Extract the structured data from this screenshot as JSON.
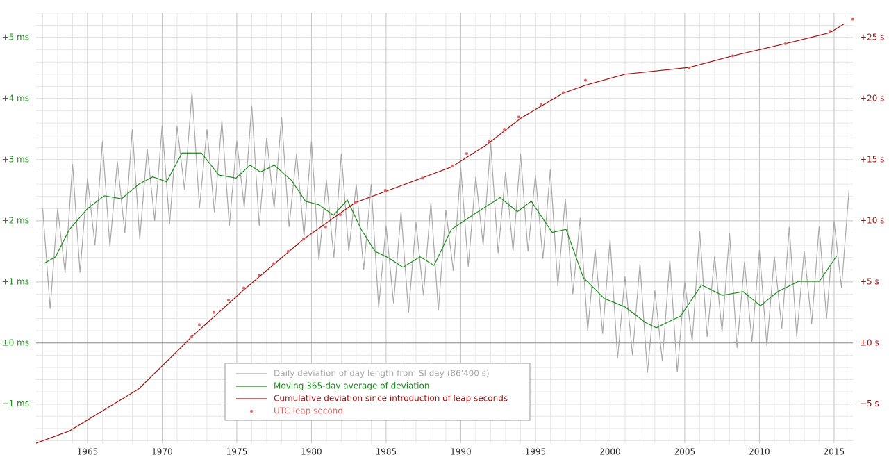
{
  "chart_data": {
    "type": "line",
    "xlim": [
      1961.56,
      2016.26
    ],
    "xticks": [
      1965,
      1970,
      1975,
      1980,
      1985,
      1990,
      1995,
      2000,
      2005,
      2010,
      2015
    ],
    "xminorticks": [
      1962,
      1963,
      1964,
      1966,
      1967,
      1968,
      1969,
      1971,
      1972,
      1973,
      1974,
      1976,
      1977,
      1978,
      1979,
      1981,
      1982,
      1983,
      1984,
      1986,
      1987,
      1988,
      1989,
      1991,
      1992,
      1993,
      1994,
      1996,
      1997,
      1998,
      1999,
      2001,
      2002,
      2003,
      2004,
      2006,
      2007,
      2008,
      2009,
      2011,
      2012,
      2013,
      2014,
      2016
    ],
    "ylim": [
      -1.64,
      5.41
    ],
    "yticks": [
      {
        "value": -1,
        "label": "−1 ms"
      },
      {
        "value": 0,
        "label": "±0 ms"
      },
      {
        "value": 1,
        "label": "+1 ms"
      },
      {
        "value": 2,
        "label": "+2 ms"
      },
      {
        "value": 3,
        "label": "+3 ms"
      },
      {
        "value": 4,
        "label": "+4 ms"
      },
      {
        "value": 5,
        "label": "+5 ms"
      }
    ],
    "yminorticks": [
      -1.6,
      -1.4,
      -1.2,
      -0.8,
      -0.6,
      -0.4,
      -0.2,
      0.2,
      0.4,
      0.6,
      0.8,
      1.2,
      1.4,
      1.6,
      1.8,
      2.2,
      2.4,
      2.6,
      2.8,
      3.2,
      3.4,
      3.6,
      3.8,
      4.2,
      4.4,
      4.6,
      4.8,
      5.2,
      5.4
    ],
    "y2lim": [
      -8.2,
      27.05
    ],
    "y2ticks": [
      {
        "value": -5,
        "label": "−5 s"
      },
      {
        "value": 0,
        "label": "±0 s"
      },
      {
        "value": 5,
        "label": "+5 s"
      },
      {
        "value": 10,
        "label": "+10 s"
      },
      {
        "value": 15,
        "label": "+15 s"
      },
      {
        "value": 20,
        "label": "+20 s"
      },
      {
        "value": 25,
        "label": "+25 s"
      }
    ],
    "grid": true,
    "series": [
      {
        "name": "Daily deviation of day length from SI day (86'400 s)",
        "type": "line",
        "color": "#a8a8a8",
        "x": [
          1962,
          1962.5,
          1963,
          1963.5,
          1964,
          1964.5,
          1965,
          1965.5,
          1966,
          1966.5,
          1967,
          1967.5,
          1968,
          1968.5,
          1969,
          1969.5,
          1970,
          1970.5,
          1971,
          1971.5,
          1972,
          1972.5,
          1973,
          1973.5,
          1974,
          1974.5,
          1975,
          1975.5,
          1976,
          1976.5,
          1977,
          1977.5,
          1978,
          1978.5,
          1979,
          1979.5,
          1980,
          1980.5,
          1981,
          1981.5,
          1982,
          1982.5,
          1983,
          1983.5,
          1984,
          1984.5,
          1985,
          1985.5,
          1986,
          1986.5,
          1987,
          1987.5,
          1988,
          1988.5,
          1989,
          1989.5,
          1990,
          1990.5,
          1991,
          1991.5,
          1992,
          1992.5,
          1993,
          1993.5,
          1994,
          1994.5,
          1995,
          1995.5,
          1996,
          1996.5,
          1997,
          1997.5,
          1998,
          1998.5,
          1999,
          1999.5,
          2000,
          2000.5,
          2001,
          2001.5,
          2002,
          2002.5,
          2003,
          2003.5,
          2004,
          2004.5,
          2005,
          2005.5,
          2006,
          2006.5,
          2007,
          2007.5,
          2008,
          2008.5,
          2009,
          2009.5,
          2010,
          2010.5,
          2011,
          2011.5,
          2012,
          2012.5,
          2013,
          2013.5,
          2014,
          2014.5,
          2015,
          2015.5,
          2016
        ],
        "values": [
          2.2,
          0.56,
          2.2,
          1.15,
          2.93,
          1.15,
          2.7,
          1.6,
          3.3,
          1.58,
          2.97,
          1.8,
          3.5,
          1.7,
          3.18,
          2.0,
          3.56,
          1.95,
          3.55,
          2.51,
          4.11,
          2.21,
          3.5,
          2.14,
          3.64,
          1.92,
          3.31,
          2.22,
          3.89,
          1.92,
          3.36,
          2.2,
          3.7,
          1.9,
          3.1,
          1.75,
          3.3,
          1.36,
          2.67,
          1.4,
          3.1,
          1.5,
          2.6,
          1.2,
          2.6,
          0.58,
          1.92,
          0.65,
          2.15,
          0.5,
          1.98,
          0.78,
          2.3,
          0.53,
          2.18,
          1.18,
          2.87,
          1.25,
          2.72,
          1.6,
          3.28,
          1.47,
          2.8,
          1.5,
          3.1,
          1.5,
          2.75,
          1.38,
          2.84,
          0.93,
          2.36,
          0.8,
          2.05,
          0.2,
          1.53,
          0.15,
          1.7,
          -0.25,
          1.09,
          -0.2,
          1.3,
          -0.49,
          0.86,
          -0.3,
          1.36,
          -0.48,
          1.0,
          0.03,
          1.83,
          0.1,
          1.42,
          0.18,
          1.8,
          -0.08,
          1.33,
          0.02,
          1.52,
          -0.05,
          1.42,
          0.24,
          1.9,
          0.1,
          1.51,
          0.31,
          1.91,
          0.4,
          2.0,
          0.9,
          2.5
        ]
      },
      {
        "name": "Moving 365-day average of deviation",
        "type": "line",
        "color": "#1a8a1a",
        "x": [
          1962.07,
          1962.86,
          1963.79,
          1965,
          1966.12,
          1967.28,
          1968.44,
          1969.37,
          1970.3,
          1971.33,
          1972.63,
          1973.79,
          1974.95,
          1975.88,
          1976.58,
          1977.51,
          1978.67,
          1979.6,
          1980.53,
          1981.47,
          1982.4,
          1983.33,
          1984.26,
          1985.19,
          1986.12,
          1987.28,
          1988.21,
          1989.37,
          1990.77,
          1992.63,
          1993.79,
          1994.72,
          1996.12,
          1997.05,
          1998.21,
          1999.6,
          2001,
          2002.4,
          2003.09,
          2004.72,
          2006.12,
          2007.51,
          2008.91,
          2010.07,
          2011.23,
          2012.63,
          2014.02,
          2015.19
        ],
        "values": [
          1.3,
          1.41,
          1.86,
          2.2,
          2.41,
          2.36,
          2.6,
          2.72,
          2.64,
          3.11,
          3.11,
          2.75,
          2.7,
          2.91,
          2.8,
          2.91,
          2.66,
          2.32,
          2.26,
          2.09,
          2.34,
          1.86,
          1.5,
          1.39,
          1.24,
          1.41,
          1.27,
          1.86,
          2.09,
          2.38,
          2.15,
          2.32,
          1.81,
          1.86,
          1.07,
          0.73,
          0.59,
          0.33,
          0.25,
          0.44,
          0.95,
          0.78,
          0.84,
          0.61,
          0.84,
          1.01,
          1.01,
          1.43
        ]
      },
      {
        "name": "Cumulative deviation since introduction of leap seconds",
        "type": "line",
        "color": "#a01010",
        "axis": "y2",
        "x": [
          1961.56,
          1963.79,
          1968.44,
          1971.98,
          1975.42,
          1979.47,
          1982.95,
          1984.95,
          1989.37,
          1991.7,
          1994.02,
          1996.86,
          1998.35,
          2001,
          2003.33,
          2005.28,
          2008.21,
          2011.74,
          2014.72,
          2015.65
        ],
        "values": [
          -8.2,
          -7.2,
          -3.75,
          0.5,
          4.3,
          8.5,
          11.5,
          12.4,
          14.4,
          16.2,
          18.4,
          20.45,
          21.1,
          22.0,
          22.3,
          22.55,
          23.5,
          24.5,
          25.4,
          26.1
        ]
      },
      {
        "name": "UTC leap second",
        "type": "scatter",
        "color": "#e06666",
        "axis": "y2",
        "x": [
          1971.98,
          1972.49,
          1973.47,
          1974.44,
          1975.47,
          1976.49,
          1977.47,
          1978.44,
          1979.47,
          1980.95,
          1981.93,
          1982.95,
          1984.95,
          1987.42,
          1989.42,
          1990.4,
          1991.88,
          1992.91,
          1993.88,
          1995.37,
          1996.86,
          1998.35,
          2005.28,
          2008.21,
          2011.74,
          2014.72,
          2016.26
        ],
        "values": [
          0.5,
          1.5,
          2.5,
          3.5,
          4.5,
          5.5,
          6.5,
          7.5,
          8.5,
          9.5,
          10.5,
          11.5,
          12.5,
          13.5,
          14.5,
          15.5,
          16.5,
          17.5,
          18.5,
          19.5,
          20.5,
          21.5,
          22.5,
          23.5,
          24.5,
          25.5,
          26.5
        ]
      }
    ]
  }
}
